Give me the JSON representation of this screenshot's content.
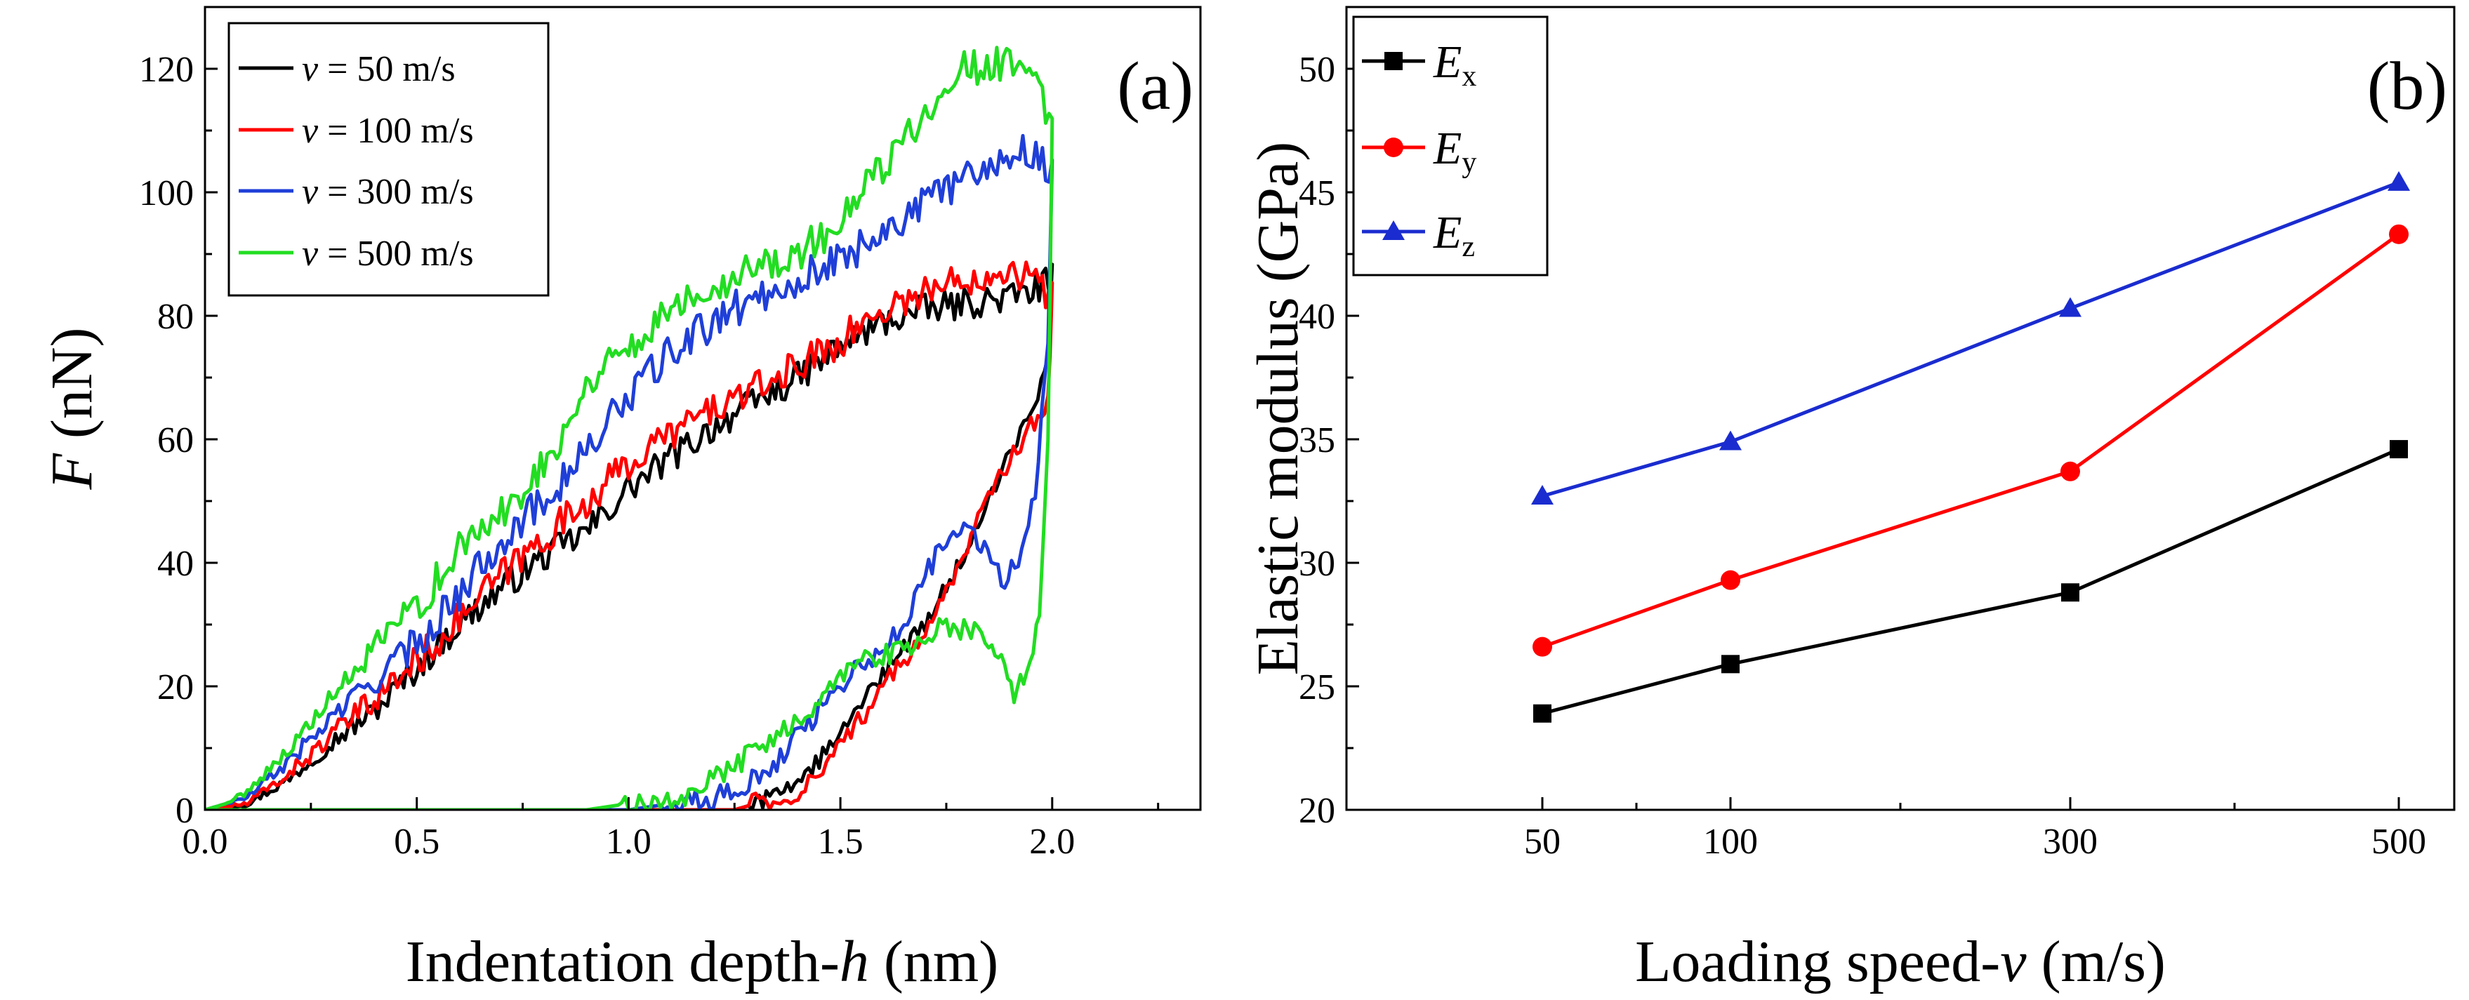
{
  "chart_data": [
    {
      "type": "line",
      "panel_label": "(a)",
      "xlabel_main": "Indentation depth-",
      "xlabel_var": "h",
      "xlabel_unit": " (nm)",
      "ylabel_var": "F",
      "ylabel_unit": " (nN)",
      "xlim": [
        0,
        2.35
      ],
      "ylim": [
        0,
        130
      ],
      "xticks": [
        "0.0",
        "0.5",
        "1.0",
        "1.5",
        "2.0"
      ],
      "yticks": [
        "0",
        "20",
        "40",
        "60",
        "80",
        "100",
        "120"
      ],
      "legend_position": "top-left",
      "series": [
        {
          "name": "v = 50 m/s",
          "legend_var": "v",
          "legend_text": " = 50 m/s",
          "color": "#000000",
          "loading": [
            [
              0,
              0
            ],
            [
              0.1,
              1
            ],
            [
              0.2,
              5
            ],
            [
              0.3,
              11
            ],
            [
              0.4,
              16
            ],
            [
              0.5,
              23
            ],
            [
              0.6,
              30
            ],
            [
              0.7,
              36
            ],
            [
              0.8,
              41
            ],
            [
              0.9,
              45
            ],
            [
              1.0,
              52
            ],
            [
              1.1,
              57
            ],
            [
              1.2,
              62
            ],
            [
              1.3,
              66
            ],
            [
              1.4,
              70
            ],
            [
              1.5,
              75
            ],
            [
              1.6,
              79
            ],
            [
              1.7,
              81
            ],
            [
              1.8,
              82
            ],
            [
              1.9,
              83
            ],
            [
              1.95,
              84
            ],
            [
              2.0,
              86
            ]
          ],
          "unloading": [
            [
              2.0,
              86
            ],
            [
              1.99,
              72
            ],
            [
              1.95,
              65
            ],
            [
              1.9,
              58
            ],
            [
              1.85,
              50
            ],
            [
              1.8,
              42
            ],
            [
              1.75,
              36
            ],
            [
              1.7,
              30
            ],
            [
              1.65,
              26
            ],
            [
              1.6,
              22
            ],
            [
              1.55,
              17
            ],
            [
              1.5,
              12
            ],
            [
              1.45,
              8
            ],
            [
              1.4,
              5
            ],
            [
              1.35,
              3
            ],
            [
              1.3,
              1
            ],
            [
              1.25,
              0
            ],
            [
              1.0,
              0
            ],
            [
              0.5,
              0
            ],
            [
              0.0,
              0
            ]
          ],
          "noise": 2.5
        },
        {
          "name": "v = 100 m/s",
          "legend_var": "v",
          "legend_text": " = 100 m/s",
          "color": "#ff0000",
          "loading": [
            [
              0,
              0
            ],
            [
              0.1,
              1
            ],
            [
              0.2,
              6
            ],
            [
              0.3,
              12
            ],
            [
              0.4,
              18
            ],
            [
              0.5,
              24
            ],
            [
              0.6,
              31
            ],
            [
              0.7,
              38
            ],
            [
              0.8,
              44
            ],
            [
              0.9,
              50
            ],
            [
              1.0,
              56
            ],
            [
              1.1,
              61
            ],
            [
              1.2,
              65
            ],
            [
              1.3,
              68
            ],
            [
              1.4,
              72
            ],
            [
              1.5,
              76
            ],
            [
              1.6,
              81
            ],
            [
              1.7,
              84
            ],
            [
              1.8,
              86
            ],
            [
              1.9,
              88
            ],
            [
              1.95,
              86
            ],
            [
              2.0,
              83
            ]
          ],
          "unloading": [
            [
              2.0,
              83
            ],
            [
              1.99,
              66
            ],
            [
              1.95,
              62
            ],
            [
              1.9,
              57
            ],
            [
              1.85,
              51
            ],
            [
              1.8,
              43
            ],
            [
              1.75,
              35
            ],
            [
              1.7,
              28
            ],
            [
              1.65,
              24
            ],
            [
              1.6,
              20
            ],
            [
              1.55,
              15
            ],
            [
              1.5,
              10
            ],
            [
              1.45,
              6
            ],
            [
              1.4,
              3
            ],
            [
              1.35,
              2
            ],
            [
              1.3,
              1
            ],
            [
              1.25,
              0
            ],
            [
              1.2,
              0
            ],
            [
              0.5,
              0
            ],
            [
              0.0,
              0
            ]
          ],
          "noise": 2.8
        },
        {
          "name": "v = 300 m/s",
          "legend_var": "v",
          "legend_text": " = 300 m/s",
          "color": "#1f3fd8",
          "loading": [
            [
              0,
              0
            ],
            [
              0.1,
              2
            ],
            [
              0.2,
              8
            ],
            [
              0.3,
              15
            ],
            [
              0.4,
              21
            ],
            [
              0.5,
              27
            ],
            [
              0.6,
              35
            ],
            [
              0.7,
              44
            ],
            [
              0.8,
              50
            ],
            [
              0.9,
              58
            ],
            [
              1.0,
              67
            ],
            [
              1.1,
              74
            ],
            [
              1.2,
              79
            ],
            [
              1.3,
              83
            ],
            [
              1.4,
              86
            ],
            [
              1.5,
              89
            ],
            [
              1.6,
              94
            ],
            [
              1.7,
              98
            ],
            [
              1.8,
              103
            ],
            [
              1.9,
              106
            ],
            [
              1.95,
              107
            ],
            [
              2.0,
              103
            ]
          ],
          "unloading": [
            [
              2.0,
              103
            ],
            [
              1.99,
              75
            ],
            [
              1.96,
              52
            ],
            [
              1.92,
              40
            ],
            [
              1.88,
              37
            ],
            [
              1.84,
              42
            ],
            [
              1.8,
              46
            ],
            [
              1.75,
              44
            ],
            [
              1.7,
              38
            ],
            [
              1.65,
              30
            ],
            [
              1.6,
              26
            ],
            [
              1.55,
              24
            ],
            [
              1.5,
              20
            ],
            [
              1.45,
              16
            ],
            [
              1.4,
              12
            ],
            [
              1.35,
              8
            ],
            [
              1.3,
              5
            ],
            [
              1.25,
              3
            ],
            [
              1.2,
              2
            ],
            [
              1.1,
              1
            ],
            [
              1.0,
              0
            ],
            [
              0.5,
              0
            ],
            [
              0.0,
              0
            ]
          ],
          "noise": 3.0
        },
        {
          "name": "v = 500 m/s",
          "legend_var": "v",
          "legend_text": " = 500 m/s",
          "color": "#22dd22",
          "loading": [
            [
              0,
              0
            ],
            [
              0.05,
              1
            ],
            [
              0.1,
              3
            ],
            [
              0.2,
              10
            ],
            [
              0.3,
              18
            ],
            [
              0.4,
              26
            ],
            [
              0.5,
              33
            ],
            [
              0.6,
              42
            ],
            [
              0.7,
              48
            ],
            [
              0.8,
              56
            ],
            [
              0.9,
              68
            ],
            [
              0.95,
              74
            ],
            [
              1.0,
              74
            ],
            [
              1.1,
              82
            ],
            [
              1.2,
              85
            ],
            [
              1.3,
              88
            ],
            [
              1.4,
              90
            ],
            [
              1.5,
              95
            ],
            [
              1.6,
              104
            ],
            [
              1.7,
              113
            ],
            [
              1.75,
              119
            ],
            [
              1.8,
              120
            ],
            [
              1.9,
              121
            ],
            [
              1.95,
              120
            ],
            [
              2.0,
              110
            ]
          ],
          "unloading": [
            [
              2.0,
              110
            ],
            [
              1.99,
              60
            ],
            [
              1.97,
              32
            ],
            [
              1.94,
              22
            ],
            [
              1.91,
              19
            ],
            [
              1.88,
              24
            ],
            [
              1.85,
              28
            ],
            [
              1.8,
              29
            ],
            [
              1.75,
              30
            ],
            [
              1.7,
              28
            ],
            [
              1.65,
              26
            ],
            [
              1.6,
              25
            ],
            [
              1.55,
              24
            ],
            [
              1.5,
              21
            ],
            [
              1.45,
              17
            ],
            [
              1.4,
              14
            ],
            [
              1.35,
              12
            ],
            [
              1.3,
              10
            ],
            [
              1.25,
              7
            ],
            [
              1.2,
              5
            ],
            [
              1.15,
              3
            ],
            [
              1.1,
              1
            ],
            [
              1.0,
              1
            ],
            [
              0.9,
              0
            ],
            [
              0.5,
              0
            ],
            [
              0.0,
              0
            ]
          ],
          "noise": 3.0
        }
      ]
    },
    {
      "type": "line",
      "panel_label": "(b)",
      "xlabel_main": "Loading speed-",
      "xlabel_var": "v",
      "xlabel_unit": " (m/s)",
      "ylabel": "Elastic modulus (GPa)",
      "categories": [
        "50",
        "100",
        "300",
        "500"
      ],
      "ylim": [
        20,
        52.5
      ],
      "yticks": [
        "20",
        "25",
        "30",
        "35",
        "40",
        "45",
        "50"
      ],
      "legend_position": "top-left",
      "series": [
        {
          "name": "Ex",
          "legend_var": "E",
          "legend_sub": "x",
          "color": "#000000",
          "marker": "square",
          "values": [
            23.9,
            25.9,
            28.8,
            34.6
          ]
        },
        {
          "name": "Ey",
          "legend_var": "E",
          "legend_sub": "y",
          "color": "#ff0000",
          "marker": "circle",
          "values": [
            26.6,
            29.3,
            33.7,
            43.3
          ]
        },
        {
          "name": "Ez",
          "legend_var": "E",
          "legend_sub": "z",
          "color": "#1a2ccf",
          "marker": "triangle",
          "values": [
            32.7,
            34.9,
            40.3,
            45.4
          ]
        }
      ]
    }
  ]
}
